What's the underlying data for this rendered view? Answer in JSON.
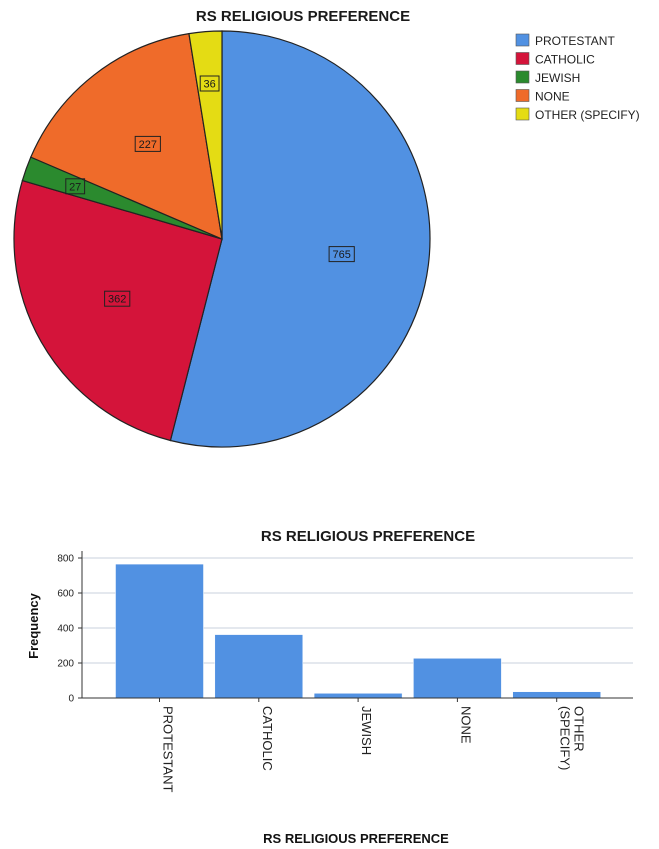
{
  "chart_data": [
    {
      "type": "pie",
      "title": "RS RELIGIOUS PREFERENCE",
      "categories": [
        "PROTESTANT",
        "CATHOLIC",
        "JEWISH",
        "NONE",
        "OTHER (SPECIFY)"
      ],
      "values": [
        765,
        362,
        27,
        227,
        36
      ],
      "colors": [
        "#5191e2",
        "#d4143a",
        "#2b8a2e",
        "#ef6b2a",
        "#e4dc14"
      ],
      "legend": "right"
    },
    {
      "type": "bar",
      "title": "RS RELIGIOUS PREFERENCE",
      "categories": [
        "PROTESTANT",
        "CATHOLIC",
        "JEWISH",
        "NONE",
        "OTHER (SPECIFY)"
      ],
      "values": [
        765,
        362,
        27,
        227,
        36
      ],
      "xlabel": "RS RELIGIOUS PREFERENCE",
      "ylabel": "Frequency",
      "ylim": [
        0,
        840
      ],
      "yticks": [
        0,
        200,
        400,
        600,
        800
      ],
      "grid": true,
      "color": "#5191e2"
    }
  ]
}
